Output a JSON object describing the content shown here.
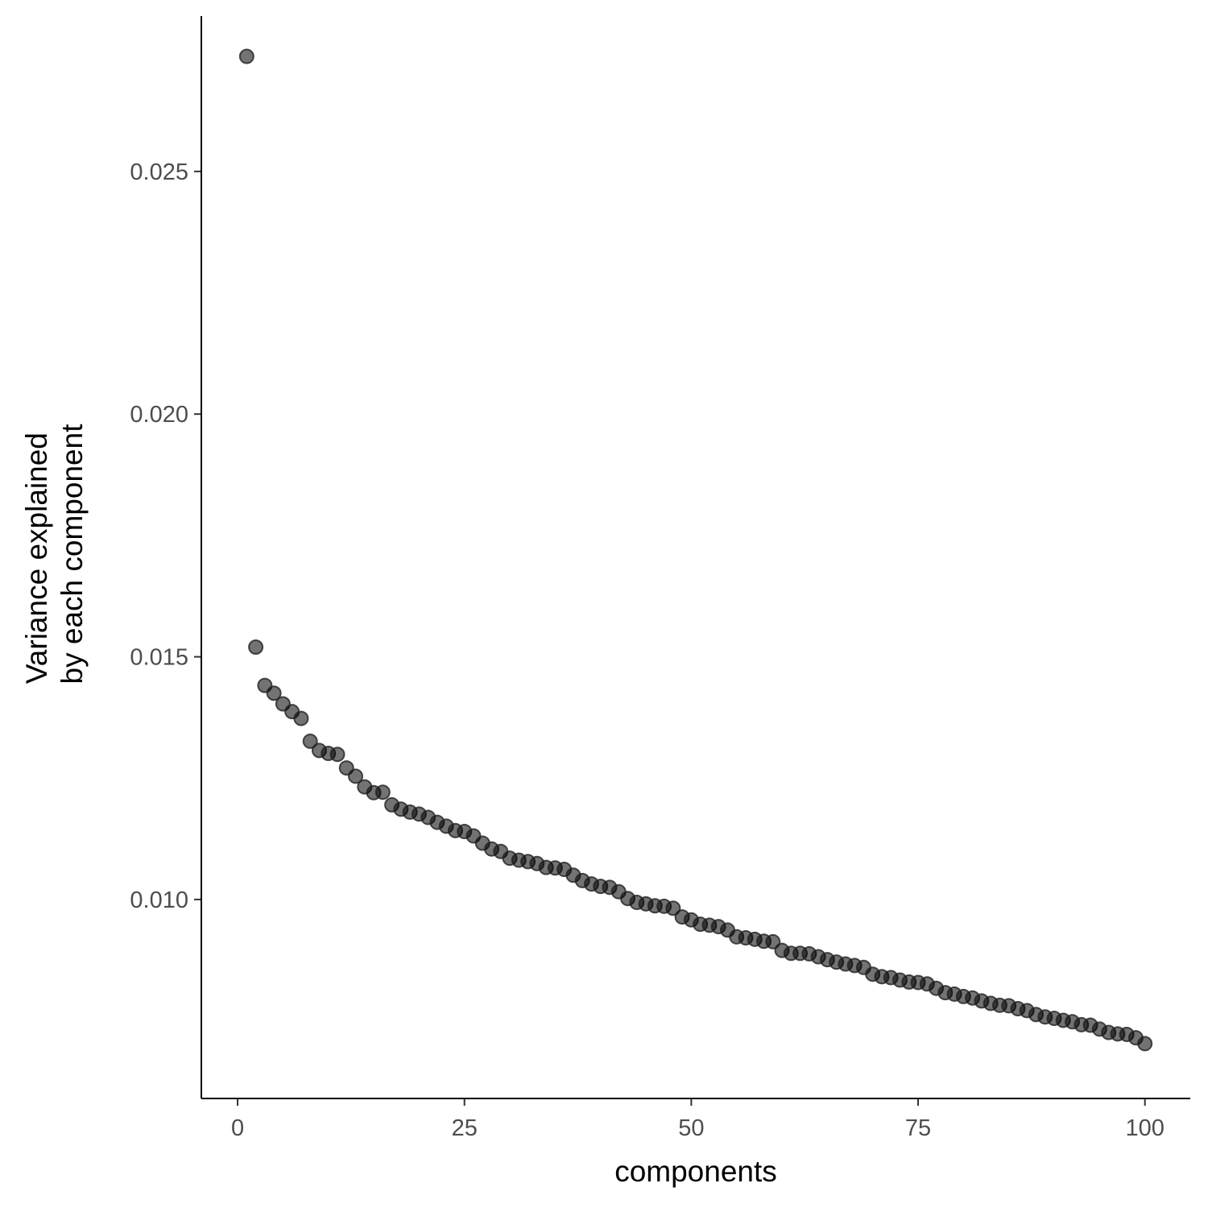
{
  "chart_data": {
    "type": "scatter",
    "xlabel": "components",
    "ylabel_lines": [
      "Variance explained",
      "by each component"
    ],
    "xlim": [
      -4,
      105
    ],
    "ylim": [
      0.0059,
      0.0282
    ],
    "x_ticks": [
      0,
      25,
      50,
      75,
      100
    ],
    "y_ticks": [
      0.01,
      0.015,
      0.02,
      0.025
    ],
    "x_tick_labels": [
      "0",
      "25",
      "50",
      "75",
      "100"
    ],
    "y_tick_labels": [
      "0.010",
      "0.015",
      "0.020",
      "0.025"
    ],
    "grid": false,
    "legend": "none",
    "point_color": "#000000",
    "point_opacity": 0.55,
    "x": [
      1,
      2,
      3,
      4,
      5,
      6,
      7,
      8,
      9,
      10,
      11,
      12,
      13,
      14,
      15,
      16,
      17,
      18,
      19,
      20,
      21,
      22,
      23,
      24,
      25,
      26,
      27,
      28,
      29,
      30,
      31,
      32,
      33,
      34,
      35,
      36,
      37,
      38,
      39,
      40,
      41,
      42,
      43,
      44,
      45,
      46,
      47,
      48,
      49,
      50,
      51,
      52,
      53,
      54,
      55,
      56,
      57,
      58,
      59,
      60,
      61,
      62,
      63,
      64,
      65,
      66,
      67,
      68,
      69,
      70,
      71,
      72,
      73,
      74,
      75,
      76,
      77,
      78,
      79,
      80,
      81,
      82,
      83,
      84,
      85,
      86,
      87,
      88,
      89,
      90,
      91,
      92,
      93,
      94,
      95,
      96,
      97,
      98,
      99,
      100
    ],
    "y": [
      0.02737,
      0.0152,
      0.01441,
      0.01425,
      0.01403,
      0.01387,
      0.01373,
      0.01326,
      0.01307,
      0.01301,
      0.01299,
      0.01271,
      0.01254,
      0.01232,
      0.0122,
      0.01221,
      0.01195,
      0.01186,
      0.0118,
      0.01176,
      0.01169,
      0.01159,
      0.01151,
      0.01142,
      0.0114,
      0.01131,
      0.01116,
      0.01104,
      0.01099,
      0.01085,
      0.01081,
      0.01078,
      0.01074,
      0.01066,
      0.01065,
      0.01062,
      0.0105,
      0.01039,
      0.01032,
      0.01027,
      0.01025,
      0.01016,
      0.01002,
      0.00994,
      0.00991,
      0.00987,
      0.00986,
      0.00982,
      0.00964,
      0.00958,
      0.00949,
      0.00947,
      0.00944,
      0.00937,
      0.00923,
      0.00921,
      0.00918,
      0.00914,
      0.00913,
      0.00895,
      0.00889,
      0.00889,
      0.00888,
      0.00882,
      0.00876,
      0.00871,
      0.00867,
      0.00864,
      0.0086,
      0.00846,
      0.00841,
      0.00839,
      0.00834,
      0.0083,
      0.00829,
      0.00826,
      0.00817,
      0.00808,
      0.00805,
      0.008,
      0.00797,
      0.00791,
      0.00786,
      0.00782,
      0.00781,
      0.00775,
      0.00771,
      0.00763,
      0.00758,
      0.00755,
      0.00751,
      0.00748,
      0.00742,
      0.00741,
      0.00733,
      0.00726,
      0.00723,
      0.00722,
      0.00715,
      0.00703
    ]
  }
}
